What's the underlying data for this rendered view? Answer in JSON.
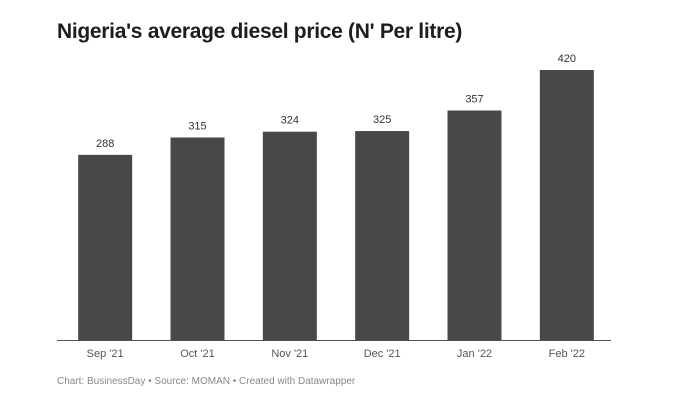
{
  "chart_data": {
    "type": "bar",
    "title": "Nigeria's average diesel price (N' Per litre)",
    "categories": [
      "Sep '21",
      "Oct '21",
      "Nov '21",
      "Dec '21",
      "Jan '22",
      "Feb '22"
    ],
    "values": [
      288,
      315,
      324,
      325,
      357,
      420
    ],
    "xlabel": "",
    "ylabel": "",
    "ylim": [
      0,
      420
    ],
    "grid": false,
    "bar_color": "#484848",
    "data_labels": true
  },
  "footer": "Chart: BusinessDay • Source: MOMAN • Created with Datawrapper"
}
